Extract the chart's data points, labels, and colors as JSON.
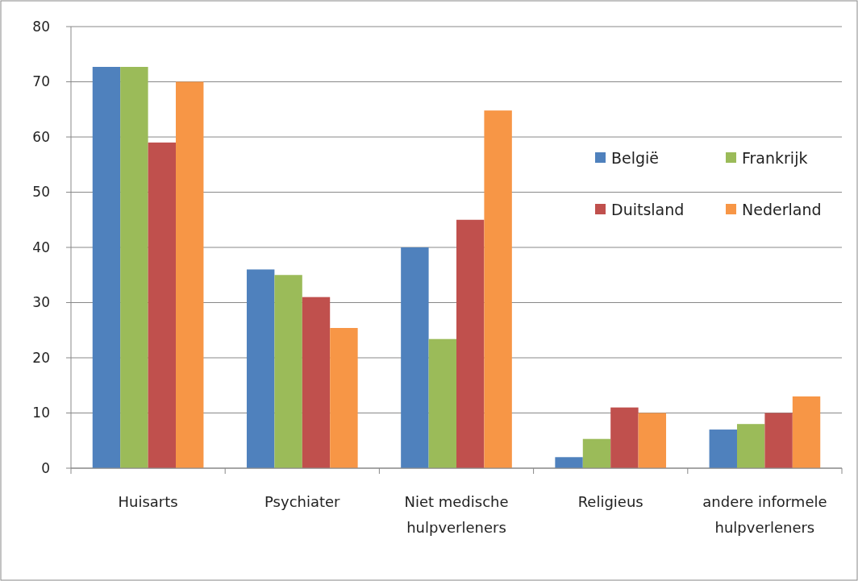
{
  "chart_data": {
    "type": "bar",
    "categories": [
      "Huisarts",
      "Psychiater",
      "Niet medische hulpverleners",
      "Religieus",
      "andere informele hulpverleners"
    ],
    "series": [
      {
        "name": "België",
        "color": "#4f81bd",
        "values": [
          72.7,
          36,
          40,
          2,
          7
        ]
      },
      {
        "name": "Frankrijk",
        "color": "#9bbb59",
        "values": [
          72.7,
          35,
          23.4,
          5.3,
          8
        ]
      },
      {
        "name": "Duitsland",
        "color": "#c0504d",
        "values": [
          59,
          31,
          45,
          11,
          10
        ]
      },
      {
        "name": "Nederland",
        "color": "#f79646",
        "values": [
          70,
          25.4,
          64.8,
          10,
          13
        ]
      }
    ],
    "ylim": [
      0,
      80
    ],
    "yticks": [
      0,
      10,
      20,
      30,
      40,
      50,
      60,
      70,
      80
    ],
    "grid": "y",
    "legend": "top right"
  }
}
